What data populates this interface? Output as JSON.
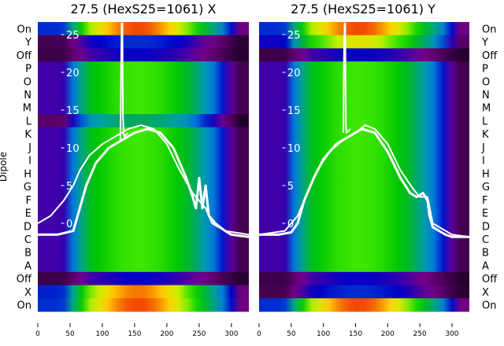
{
  "chart_data": [
    {
      "type": "heatmap",
      "title": "27.5 (HexS25=1061) X",
      "ylabel": "Dipole",
      "xlim": [
        0,
        327
      ],
      "xticks": [
        "0",
        "50",
        "100",
        "150",
        "200",
        "250",
        "300"
      ],
      "row_labels": [
        "On",
        "Y",
        "Off",
        "P",
        "O",
        "N",
        "M",
        "L",
        "K",
        "J",
        "I",
        "H",
        "G",
        "F",
        "E",
        "D",
        "C",
        "B",
        "A",
        "Off",
        "X",
        "On"
      ],
      "row_intensity": [
        0.85,
        0.12,
        0.1,
        0.62,
        0.62,
        0.62,
        0.62,
        0.42,
        0.62,
        0.62,
        0.62,
        0.62,
        0.62,
        0.62,
        0.62,
        0.62,
        0.62,
        0.62,
        0.62,
        0.1,
        0.82,
        0.85
      ],
      "overlay_ylim": [
        -3,
        26.5
      ],
      "overlay_yticks": [
        "0",
        "5",
        "10",
        "15",
        "20",
        "25"
      ],
      "traces": [
        {
          "x": [
            0,
            30,
            55,
            65,
            75,
            90,
            110,
            130,
            150,
            170,
            190,
            210,
            230,
            240,
            245,
            250,
            255,
            260,
            265,
            275,
            290,
            300,
            327
          ],
          "y": [
            -1.5,
            -1.5,
            -1,
            2,
            5,
            8,
            10,
            11,
            12,
            12.5,
            12,
            10,
            6,
            3.5,
            2,
            6,
            2,
            5,
            1,
            0,
            -1,
            -1.5,
            -1.8
          ]
        },
        {
          "x": [
            0,
            20,
            40,
            55,
            65,
            80,
            100,
            120,
            140,
            160,
            180,
            200,
            220,
            240,
            250,
            260,
            270,
            290,
            327
          ],
          "y": [
            0,
            1,
            3,
            5,
            7,
            9,
            10.5,
            11.5,
            12.5,
            13,
            12.5,
            10.5,
            7,
            4,
            3,
            2,
            0,
            -1,
            -1.5
          ]
        },
        {
          "x": [
            128,
            129,
            130,
            131,
            132,
            133,
            134,
            140
          ],
          "y": [
            11,
            20,
            26.5,
            26.5,
            14,
            12,
            11.5,
            12
          ]
        }
      ]
    },
    {
      "type": "heatmap",
      "title": "27.5 (HexS25=1061) Y",
      "xlim": [
        0,
        327
      ],
      "xticks": [
        "0",
        "50",
        "100",
        "150",
        "200",
        "250",
        "300"
      ],
      "row_labels": [
        "On",
        "Y",
        "Off",
        "P",
        "O",
        "N",
        "M",
        "L",
        "K",
        "J",
        "I",
        "H",
        "G",
        "F",
        "E",
        "D",
        "C",
        "B",
        "A",
        "Off",
        "X",
        "On"
      ],
      "row_intensity": [
        0.85,
        0.72,
        0.1,
        0.62,
        0.62,
        0.62,
        0.62,
        0.62,
        0.62,
        0.62,
        0.62,
        0.62,
        0.62,
        0.62,
        0.62,
        0.62,
        0.62,
        0.62,
        0.62,
        0.1,
        0.12,
        0.85
      ],
      "overlay_ylim": [
        -3,
        26.5
      ],
      "overlay_yticks": [
        "0",
        "5",
        "10",
        "15",
        "20",
        "25"
      ],
      "traces": [
        {
          "x": [
            0,
            30,
            50,
            60,
            70,
            85,
            100,
            120,
            140,
            160,
            180,
            200,
            220,
            235,
            245,
            255,
            262,
            265,
            270,
            290,
            300,
            327
          ],
          "y": [
            -1.5,
            -1.5,
            -1.2,
            0,
            3,
            6,
            8.5,
            10.5,
            11.5,
            12.5,
            12,
            9.5,
            6,
            4,
            3.5,
            4,
            3,
            1,
            -0.5,
            -1.5,
            -1.8,
            -1.8
          ]
        },
        {
          "x": [
            0,
            40,
            60,
            75,
            90,
            110,
            130,
            150,
            165,
            180,
            200,
            220,
            240,
            250,
            262,
            270,
            300,
            327
          ],
          "y": [
            -1.5,
            -1,
            1,
            4,
            7,
            9.5,
            11,
            12,
            13,
            12.5,
            10.5,
            7,
            4.5,
            3.5,
            3.5,
            0,
            -1.5,
            -1.8
          ]
        },
        {
          "x": [
            131,
            132,
            133,
            134,
            135,
            136,
            142
          ],
          "y": [
            12,
            22,
            26.5,
            26.5,
            13,
            12,
            12.5
          ]
        }
      ]
    }
  ]
}
